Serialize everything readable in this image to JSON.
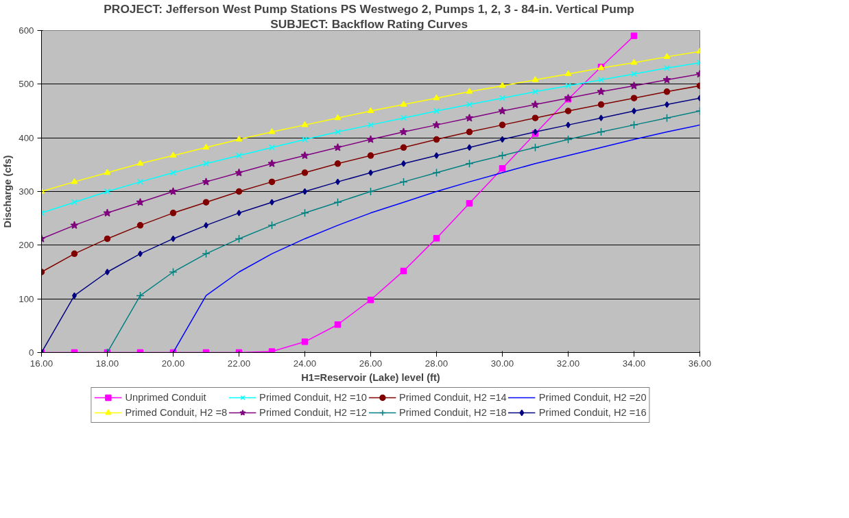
{
  "chart_data": {
    "type": "line",
    "title": "PROJECT: Jefferson West Pump Stations  PS Westwego 2, Pumps 1, 2, 3 - 84-in. Vertical Pump",
    "subtitle": "SUBJECT:  Backflow Rating Curves",
    "xlabel": "H1=Reservoir (Lake) level (ft)",
    "ylabel": "Discharge (cfs)",
    "xlim": [
      16,
      36
    ],
    "ylim": [
      0,
      600
    ],
    "xticks": [
      {
        "value": 16,
        "label": "16.00"
      },
      {
        "value": 18,
        "label": "18.00"
      },
      {
        "value": 20,
        "label": "20.00"
      },
      {
        "value": 22,
        "label": "22.00"
      },
      {
        "value": 24,
        "label": "24.00"
      },
      {
        "value": 26,
        "label": "26.00"
      },
      {
        "value": 28,
        "label": "28.00"
      },
      {
        "value": 30,
        "label": "30.00"
      },
      {
        "value": 32,
        "label": "32.00"
      },
      {
        "value": 34,
        "label": "34.00"
      },
      {
        "value": 36,
        "label": "36.00"
      }
    ],
    "yticks": [
      0,
      100,
      200,
      300,
      400,
      500,
      600
    ],
    "grid": "y",
    "legend": "bottom",
    "line_style": "solid",
    "series": [
      {
        "name": "Unprimed Conduit",
        "color": "#ff00ff",
        "marker": "square",
        "x": [
          16,
          17,
          18,
          19,
          20,
          21,
          22,
          23,
          24,
          25,
          26,
          27,
          28,
          29,
          30,
          31,
          32,
          33,
          34
        ],
        "values": [
          0,
          0,
          0,
          0,
          0,
          0,
          0,
          2,
          20,
          52,
          98,
          152,
          213,
          278,
          343,
          408,
          472,
          532,
          590
        ]
      },
      {
        "name": "Primed Conduit, H2 =8",
        "color": "#ffff00",
        "marker": "triangle",
        "x": [
          16,
          17,
          18,
          19,
          20,
          21,
          22,
          23,
          24,
          25,
          26,
          27,
          28,
          29,
          30,
          31,
          32,
          33,
          34,
          35,
          36
        ],
        "values": [
          300,
          318,
          335,
          352,
          367,
          382,
          397,
          411,
          424,
          437,
          450,
          462,
          474,
          486,
          497,
          508,
          519,
          530,
          540,
          551,
          561
        ]
      },
      {
        "name": "Primed Conduit, H2 =10",
        "color": "#00ffff",
        "marker": "x",
        "x": [
          16,
          17,
          18,
          19,
          20,
          21,
          22,
          23,
          24,
          25,
          26,
          27,
          28,
          29,
          30,
          31,
          32,
          33,
          34,
          35,
          36
        ],
        "values": [
          260,
          280,
          300,
          318,
          335,
          352,
          367,
          382,
          397,
          411,
          424,
          437,
          450,
          462,
          474,
          486,
          497,
          508,
          519,
          530,
          540
        ]
      },
      {
        "name": "Primed Conduit, H2 =12",
        "color": "#800080",
        "marker": "star",
        "x": [
          16,
          17,
          18,
          19,
          20,
          21,
          22,
          23,
          24,
          25,
          26,
          27,
          28,
          29,
          30,
          31,
          32,
          33,
          34,
          35,
          36
        ],
        "values": [
          212,
          237,
          260,
          280,
          300,
          318,
          335,
          352,
          367,
          382,
          397,
          411,
          424,
          437,
          450,
          462,
          474,
          486,
          497,
          508,
          519
        ]
      },
      {
        "name": "Primed Conduit, H2 =14",
        "color": "#800000",
        "marker": "circle",
        "x": [
          16,
          17,
          18,
          19,
          20,
          21,
          22,
          23,
          24,
          25,
          26,
          27,
          28,
          29,
          30,
          31,
          32,
          33,
          34,
          35,
          36
        ],
        "values": [
          150,
          184,
          212,
          237,
          260,
          280,
          300,
          318,
          335,
          352,
          367,
          382,
          397,
          411,
          424,
          437,
          450,
          462,
          474,
          486,
          497
        ]
      },
      {
        "name": "Primed Conduit, H2 =18",
        "color": "#008080",
        "marker": "cross",
        "x": [
          18,
          19,
          20,
          21,
          22,
          23,
          24,
          25,
          26,
          27,
          28,
          29,
          30,
          31,
          32,
          33,
          34,
          35,
          36
        ],
        "values": [
          0,
          106,
          150,
          184,
          212,
          237,
          260,
          280,
          300,
          318,
          335,
          352,
          367,
          382,
          397,
          411,
          424,
          437,
          450
        ]
      },
      {
        "name": "Primed Conduit, H2 =20",
        "color": "#0000ff",
        "marker": "none",
        "x": [
          20,
          21,
          22,
          23,
          24,
          25,
          26,
          27,
          28,
          29,
          30,
          31,
          32,
          33,
          34,
          35,
          36
        ],
        "values": [
          0,
          106,
          150,
          184,
          212,
          237,
          260,
          280,
          300,
          318,
          335,
          352,
          367,
          382,
          397,
          411,
          424
        ]
      },
      {
        "name": "Primed Conduit, H2 =16",
        "color": "#000080",
        "marker": "diamond",
        "x": [
          16,
          17,
          18,
          19,
          20,
          21,
          22,
          23,
          24,
          25,
          26,
          27,
          28,
          29,
          30,
          31,
          32,
          33,
          34,
          35,
          36
        ],
        "values": [
          0,
          106,
          150,
          184,
          212,
          237,
          260,
          280,
          300,
          318,
          335,
          352,
          367,
          382,
          397,
          411,
          424,
          437,
          450,
          462,
          474
        ]
      }
    ]
  }
}
